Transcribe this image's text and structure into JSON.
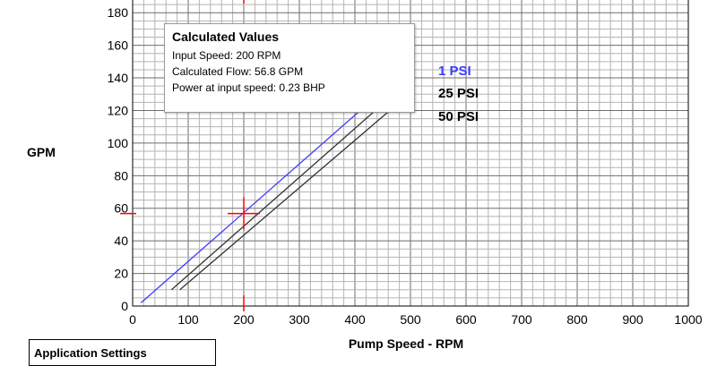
{
  "chart_data": {
    "type": "line",
    "xlabel": "Pump Speed - RPM",
    "ylabel": "GPM",
    "xlim": [
      0,
      1000
    ],
    "ylim": [
      0,
      190
    ],
    "x_ticks": [
      0,
      100,
      200,
      300,
      400,
      500,
      600,
      700,
      800,
      900,
      1000
    ],
    "y_ticks": [
      0,
      20,
      40,
      60,
      80,
      100,
      120,
      140,
      160,
      180
    ],
    "grid": true,
    "series": [
      {
        "name": "1 PSI",
        "color": "#3c3cff",
        "x": [
          15,
          500
        ],
        "y": [
          2,
          147
        ]
      },
      {
        "name": "25 PSI",
        "color": "#333333",
        "x": [
          70,
          470
        ],
        "y": [
          10,
          130
        ]
      },
      {
        "name": "50 PSI",
        "color": "#333333",
        "x": [
          85,
          480
        ],
        "y": [
          10,
          125
        ]
      }
    ],
    "series_label_colors": [
      "#3c3cff",
      "#000000",
      "#000000"
    ],
    "marker": {
      "x": 200,
      "y": 56.8,
      "color": "#ff0000"
    }
  },
  "tooltip": {
    "title": "Calculated Values",
    "lines": [
      "Input Speed: 200 RPM",
      "Calculated Flow: 56.8 GPM",
      "Power at input speed: 0.23 BHP"
    ]
  },
  "settings_panel": {
    "title": "Application Settings"
  }
}
